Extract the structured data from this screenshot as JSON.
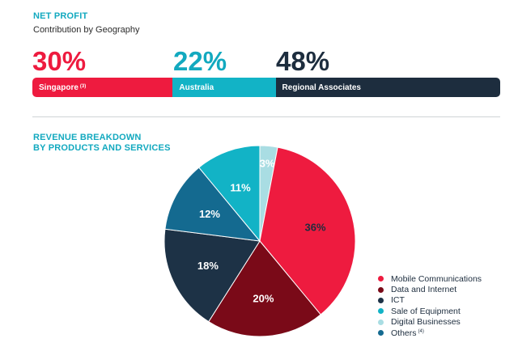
{
  "net_profit": {
    "title": "NET PROFIT",
    "subtitle": "Contribution by Geography",
    "segments": [
      {
        "percent_label": "30%",
        "label": "Singapore",
        "note": "(3)",
        "value": 30,
        "color": "#ee1b3f",
        "text_color": "#ee1b3f"
      },
      {
        "percent_label": "22%",
        "label": "Australia",
        "note": "",
        "value": 22,
        "color": "#12b3c6",
        "text_color": "#12a9bf"
      },
      {
        "percent_label": "48%",
        "label": "Regional Associates",
        "note": "",
        "value": 48,
        "color": "#1d2d3e",
        "text_color": "#1d2d3e"
      }
    ]
  },
  "revenue": {
    "title_line1": "REVENUE BREAKDOWN",
    "title_line2": "BY PRODUCTS AND SERVICES"
  },
  "chart_data": [
    {
      "type": "bar",
      "stacked": true,
      "orientation": "horizontal",
      "title": "NET PROFIT",
      "subtitle": "Contribution by Geography",
      "categories": [
        "Singapore",
        "Australia",
        "Regional Associates"
      ],
      "values": [
        30,
        22,
        48
      ]
    },
    {
      "type": "pie",
      "title": "REVENUE BREAKDOWN BY PRODUCTS AND SERVICES",
      "slices": [
        {
          "label": "Digital Businesses",
          "value": 3,
          "value_label": "3%",
          "color": "#a9dde3",
          "label_color": "#ffffff"
        },
        {
          "label": "Mobile Communications",
          "value": 36,
          "value_label": "36%",
          "color": "#ee1b3f",
          "label_color": "#1d2d3e"
        },
        {
          "label": "Data and Internet",
          "value": 20,
          "value_label": "20%",
          "color": "#7a0a18",
          "label_color": "#ffffff"
        },
        {
          "label": "ICT",
          "value": 18,
          "value_label": "18%",
          "color": "#1d3246",
          "label_color": "#ffffff"
        },
        {
          "label": "Others",
          "value": 12,
          "value_label": "12%",
          "color": "#146a90",
          "label_color": "#ffffff"
        },
        {
          "label": "Sale of Equipment",
          "value": 11,
          "value_label": "11%",
          "color": "#12b3c6",
          "label_color": "#ffffff"
        }
      ],
      "legend_position": "bottom-right",
      "legend": [
        {
          "label": "Mobile Communications",
          "note": "",
          "color": "#ee1b3f"
        },
        {
          "label": "Data and Internet",
          "note": "",
          "color": "#7a0a18"
        },
        {
          "label": "ICT",
          "note": "",
          "color": "#1d3246"
        },
        {
          "label": "Sale of Equipment",
          "note": "",
          "color": "#12b3c6"
        },
        {
          "label": "Digital Businesses",
          "note": "",
          "color": "#a9dde3"
        },
        {
          "label": "Others",
          "note": "(4)",
          "color": "#146a90"
        }
      ]
    }
  ]
}
